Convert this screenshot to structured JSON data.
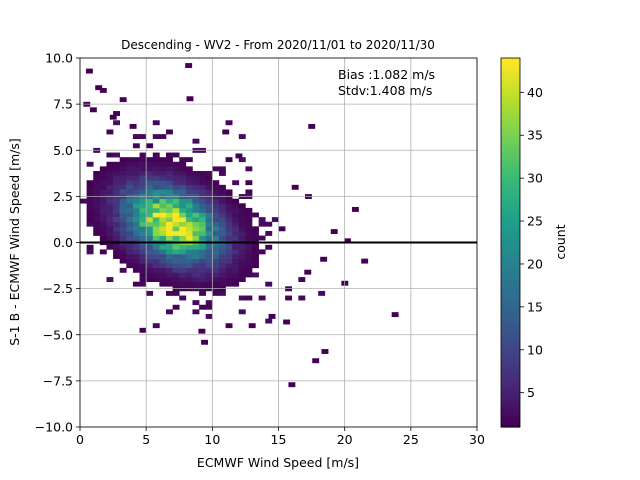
{
  "chart_data": {
    "type": "heatmap",
    "title": "Descending - WV2 - From 2020/11/01 to 2020/11/30",
    "xlabel": "ECMWF Wind Speed [m/s]",
    "ylabel": "S-1 B - ECMWF Wind Speed [m/s]",
    "xlim": [
      0,
      30
    ],
    "ylim": [
      -10,
      10
    ],
    "xticks": [
      "0",
      "5",
      "10",
      "15",
      "20",
      "25",
      "30"
    ],
    "yticks": [
      "−10.0",
      "−7.5",
      "−5.0",
      "−2.5",
      "0.0",
      "2.5",
      "5.0",
      "7.5",
      "10.0"
    ],
    "grid": true,
    "reference_line_y": 0,
    "bin_size": {
      "x": 0.5,
      "y": 0.25
    },
    "annotation": {
      "line1": "Bias :1.082 m/s",
      "line2": "Stdv:1.408 m/s"
    },
    "colorbar": {
      "label": "count",
      "range": [
        1,
        44
      ],
      "ticks": [
        "5",
        "10",
        "15",
        "20",
        "25",
        "30",
        "35",
        "40"
      ],
      "colormap": "viridis"
    },
    "density_model": {
      "peak_x": 7.0,
      "peak_y": 1.0,
      "peak_count": 43,
      "sigma_x": 2.4,
      "sigma_y": 1.35,
      "correlation": -0.35
    },
    "outliers": [
      [
        0.7,
        9.3
      ],
      [
        1.4,
        8.4
      ],
      [
        8.2,
        9.6
      ],
      [
        8.3,
        7.8
      ],
      [
        0.5,
        7.5
      ],
      [
        1.0,
        7.2
      ],
      [
        17.5,
        6.3
      ],
      [
        20.8,
        1.8
      ],
      [
        20.2,
        0.1
      ],
      [
        21.5,
        -1.0
      ],
      [
        23.8,
        -3.9
      ],
      [
        18.5,
        -5.9
      ],
      [
        16.0,
        -7.7
      ],
      [
        9.4,
        -5.4
      ],
      [
        9.2,
        -4.8
      ],
      [
        17.8,
        -6.4
      ],
      [
        15.6,
        -4.3
      ],
      [
        13.0,
        -4.5
      ],
      [
        14.5,
        -4.0
      ],
      [
        20.0,
        -2.2
      ],
      [
        11.0,
        6.0
      ],
      [
        19.2,
        0.6
      ],
      [
        18.4,
        -0.9
      ],
      [
        2.5,
        6.8
      ],
      [
        4.0,
        6.3
      ],
      [
        12.0,
        4.7
      ],
      [
        17.2,
        -1.6
      ]
    ]
  }
}
